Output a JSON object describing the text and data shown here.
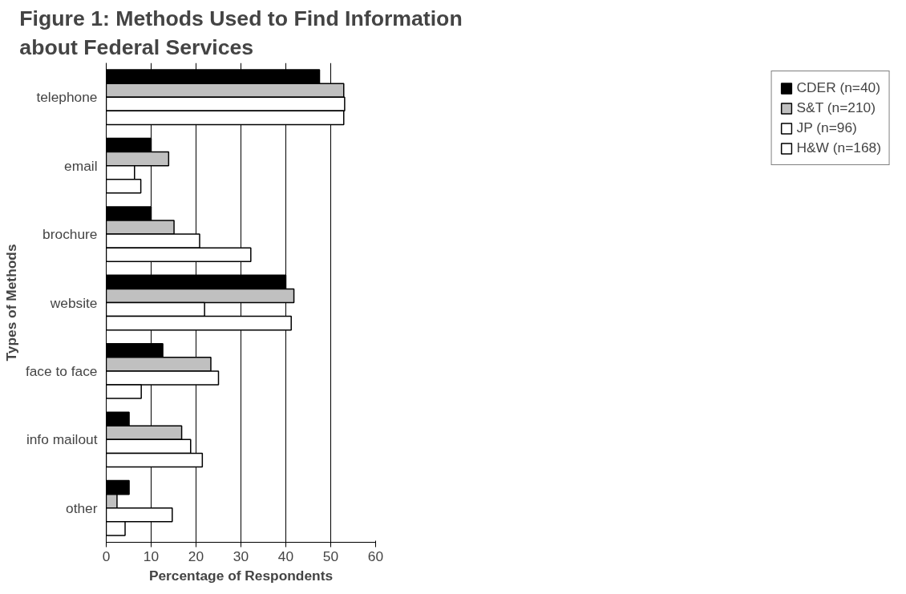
{
  "chart_data": {
    "type": "bar",
    "orientation": "horizontal",
    "title": "Figure 1: Methods Used to Find Information about Federal Services",
    "xlabel": "Percentage of Respondents",
    "ylabel": "Types of Methods",
    "categories": [
      "telephone",
      "email",
      "brochure",
      "website",
      "face to face",
      "info mailout",
      "other"
    ],
    "series": [
      {
        "name": "CDER (n=40)",
        "color": "#000000",
        "values": [
          47.5,
          10,
          10,
          40,
          12.6,
          5.1,
          5.1
        ]
      },
      {
        "name": "S&T (n=210)",
        "color": "#c0c0c0",
        "values": [
          52.9,
          13.9,
          15.1,
          41.8,
          23.3,
          16.8,
          2.4
        ]
      },
      {
        "name": "JP (n=96)",
        "color": "#ffffff",
        "values": [
          53.1,
          6.3,
          20.8,
          21.9,
          25.0,
          18.8,
          14.7
        ]
      },
      {
        "name": "H&W (n=168)",
        "color": "#ffffff",
        "values": [
          52.9,
          7.7,
          32.2,
          41.2,
          7.8,
          21.4,
          4.2
        ]
      }
    ],
    "xlim": [
      0,
      60
    ],
    "xticks": [
      0,
      10,
      20,
      30,
      40,
      50,
      60
    ],
    "grid": "x",
    "legend": "right"
  }
}
